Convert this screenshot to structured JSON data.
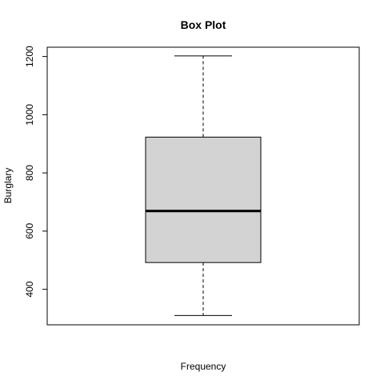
{
  "chart_data": {
    "type": "box",
    "title": "Box Plot",
    "xlabel": "Frequency",
    "ylabel": "Burglary",
    "ylim": [
      278,
      1232
    ],
    "yticks": [
      400,
      600,
      800,
      1000,
      1200
    ],
    "grid": false,
    "box": {
      "min": 310,
      "q1": 492,
      "median": 669,
      "q3": 923,
      "max": 1202
    },
    "colors": {
      "box_fill": "#d3d3d3",
      "stroke": "#000000"
    }
  }
}
